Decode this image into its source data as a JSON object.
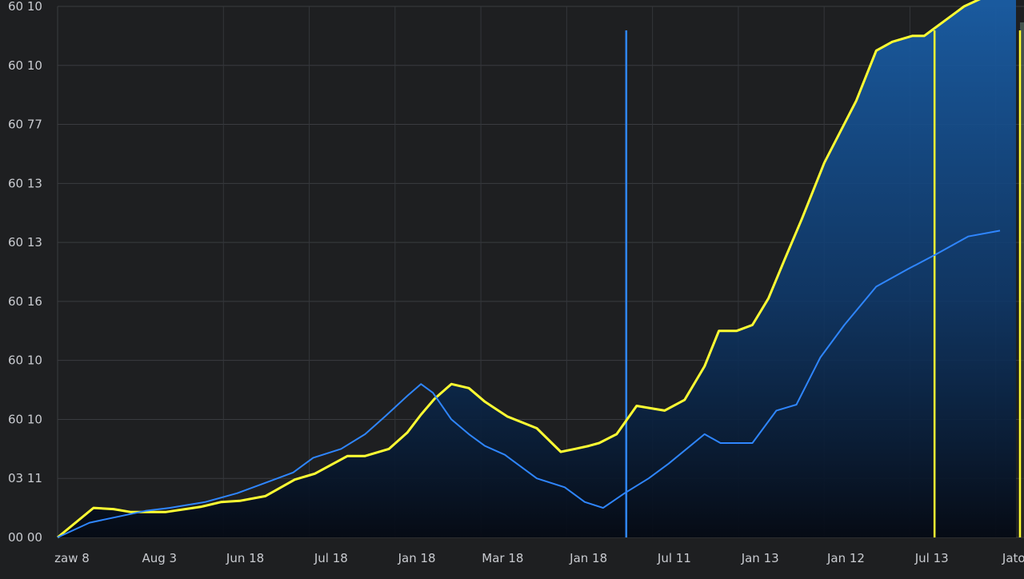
{
  "chart_data": {
    "type": "area",
    "title": "",
    "xlabel": "",
    "ylabel": "",
    "grid": true,
    "x_ticks": [
      "zaw 8",
      "Aug 3",
      "Jun 18",
      "Jul 18",
      "Jan 18",
      "Mar 18",
      "Jan 18",
      "Jul 11",
      "Jan 13",
      "Jan 12",
      "Jul 13",
      "Jaton"
    ],
    "y_ticks": [
      "00 00",
      "03 11",
      "60 10",
      "60 10",
      "60 16",
      "60 13",
      "60 13",
      "60 77",
      "60 10",
      "60 10"
    ],
    "ylim": [
      0,
      9
    ],
    "xlim": [
      0,
      1200
    ],
    "series": [
      {
        "color": "#ffff33",
        "x": [
          0,
          45,
          70,
          92,
          135,
          180,
          205,
          228,
          260,
          297,
          322,
          363,
          385,
          415,
          438,
          455,
          472,
          493,
          515,
          535,
          563,
          600,
          630,
          648,
          665,
          678,
          700,
          725,
          760,
          785,
          810,
          828,
          850,
          870,
          890,
          910,
          932,
          960,
          1000,
          1025,
          1045,
          1070,
          1085,
          1095,
          1110,
          1125,
          1135,
          1167,
          1185,
          1200
        ],
        "y": [
          0,
          0.5,
          0.48,
          0.43,
          0.43,
          0.52,
          0.6,
          0.62,
          0.7,
          0.98,
          1.08,
          1.38,
          1.38,
          1.5,
          1.78,
          2.08,
          2.35,
          2.6,
          2.53,
          2.3,
          2.05,
          1.85,
          1.45,
          1.5,
          1.55,
          1.6,
          1.75,
          2.23,
          2.15,
          2.33,
          2.9,
          3.5,
          3.5,
          3.6,
          4.05,
          4.7,
          5.4,
          6.35,
          7.4,
          8.25,
          8.4,
          8.5,
          8.5,
          8.6,
          8.75,
          8.9,
          9.0,
          9.2,
          9.3,
          9.3
        ]
      },
      {
        "color": "#2f86ff",
        "x": [
          0,
          40,
          75,
          110,
          140,
          185,
          225,
          265,
          295,
          320,
          355,
          385,
          410,
          438,
          455,
          470,
          493,
          515,
          535,
          560,
          600,
          635,
          660,
          683,
          710,
          740,
          765,
          810,
          830,
          870,
          900,
          925,
          955,
          985,
          1025,
          1065,
          1100,
          1140,
          1180
        ],
        "y": [
          0,
          0.25,
          0.35,
          0.45,
          0.5,
          0.6,
          0.75,
          0.95,
          1.1,
          1.35,
          1.5,
          1.75,
          2.05,
          2.4,
          2.6,
          2.45,
          2.0,
          1.75,
          1.55,
          1.4,
          1.0,
          0.85,
          0.6,
          0.5,
          0.75,
          1.0,
          1.25,
          1.75,
          1.6,
          1.6,
          2.15,
          2.25,
          3.05,
          3.6,
          4.25,
          4.55,
          4.8,
          5.1,
          5.2
        ]
      }
    ],
    "markers": [
      {
        "x": 712,
        "color": "#2f86ff"
      },
      {
        "x": 1098,
        "color": "#ffff33"
      },
      {
        "x": 1205,
        "color": "#ffff33"
      }
    ]
  }
}
